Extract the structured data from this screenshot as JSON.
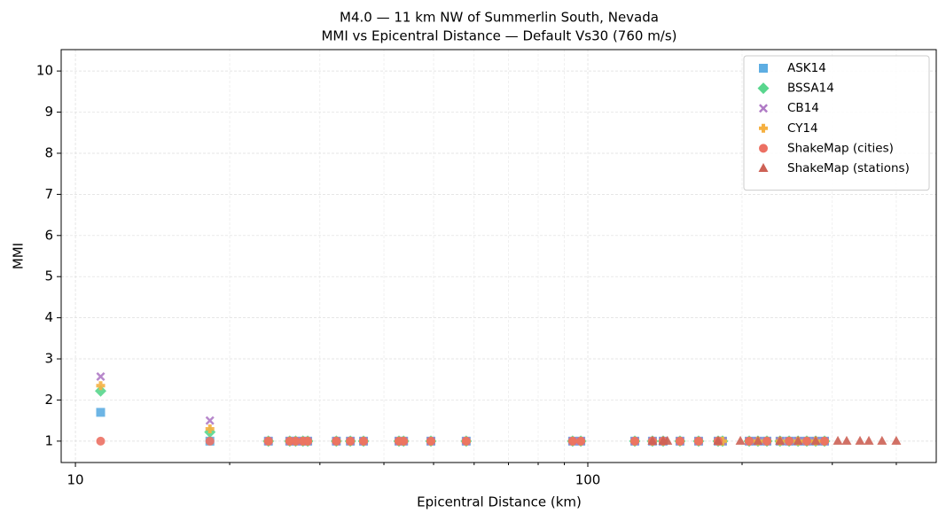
{
  "chart_data": {
    "type": "scatter",
    "title": "M4.0 — 11 km NW of Summerlin South, Nevada",
    "subtitle": "MMI vs Epicentral Distance — Default Vs30 (760 m/s)",
    "x_label": "Epicentral Distance (km)",
    "y_label": "MMI",
    "x_scale": "log",
    "grid": true,
    "legend": "upper right",
    "xlim": [
      9.38,
      478.6
    ],
    "xticks": [
      10,
      100
    ],
    "xminorticks": [
      20,
      30,
      40,
      50,
      60,
      70,
      80,
      90,
      200,
      300,
      400
    ],
    "ylim": [
      0.48,
      10.52
    ],
    "yticks": [
      1,
      2,
      3,
      4,
      5,
      6,
      7,
      8,
      9,
      10
    ],
    "series": [
      {
        "name": "ASK14",
        "color": "#5dade2",
        "marker": "square",
        "x": [
          11.2,
          18.3,
          23.8,
          26.2,
          26.9,
          27.8,
          28.4,
          32.3,
          34.4,
          36.5,
          42.8,
          43.7,
          49.4,
          57.9,
          93.4,
          96.9,
          123.5,
          133.7,
          140.3,
          151.3,
          164.5,
          179.6,
          183.2,
          206.5,
          214.8,
          223.6,
          237.2,
          247.1,
          257.2,
          267.5,
          278.4,
          289.7
        ],
        "values": [
          1.7,
          1.0,
          1,
          1,
          1,
          1,
          1,
          1,
          1,
          1,
          1,
          1,
          1,
          1,
          1,
          1,
          1,
          1,
          1,
          1,
          1,
          1,
          1,
          1,
          1,
          1,
          1,
          1,
          1,
          1,
          1,
          1
        ]
      },
      {
        "name": "BSSA14",
        "color": "#58d68d",
        "marker": "diamond",
        "x": [
          11.2,
          18.3,
          23.8,
          26.2,
          26.9,
          27.8,
          28.4,
          32.3,
          34.4,
          36.5,
          42.8,
          43.7,
          49.4,
          57.9,
          93.4,
          96.9,
          123.5,
          133.7,
          140.3,
          151.3,
          164.5,
          179.6,
          183.2,
          206.5,
          214.8,
          223.6,
          237.2,
          247.1,
          257.2,
          267.5,
          278.4,
          289.7
        ],
        "values": [
          2.22,
          1.22,
          1,
          1,
          1,
          1,
          1,
          1,
          1,
          1,
          1,
          1,
          1,
          1,
          1,
          1,
          1,
          1,
          1,
          1,
          1,
          1,
          1,
          1,
          1,
          1,
          1,
          1,
          1,
          1,
          1,
          1
        ]
      },
      {
        "name": "CB14",
        "color": "#af7ac5",
        "marker": "x",
        "x": [
          11.2,
          18.3,
          23.8,
          26.2,
          26.9,
          27.8,
          28.4,
          32.3,
          34.4,
          36.5,
          42.8,
          43.7,
          49.4,
          57.9,
          93.4,
          96.9,
          123.5,
          133.7,
          140.3,
          151.3,
          164.5,
          179.6,
          183.2,
          206.5,
          214.8,
          223.6,
          237.2,
          247.1,
          257.2,
          267.5,
          278.4,
          289.7
        ],
        "values": [
          2.57,
          1.5,
          1,
          1,
          1,
          1,
          1,
          1,
          1,
          1,
          1,
          1,
          1,
          1,
          1,
          1,
          1,
          1,
          1,
          1,
          1,
          1,
          1,
          1,
          1,
          1,
          1,
          1,
          1,
          1,
          1,
          1
        ]
      },
      {
        "name": "CY14",
        "color": "#f5b041",
        "marker": "plus",
        "x": [
          11.2,
          18.3,
          23.8,
          26.2,
          26.9,
          27.8,
          28.4,
          32.3,
          34.4,
          36.5,
          42.8,
          43.7,
          49.4,
          57.9,
          93.4,
          96.9,
          123.5,
          133.7,
          140.3,
          151.3,
          164.5,
          179.6,
          183.2,
          206.5,
          214.8,
          223.6,
          237.2,
          247.1,
          257.2,
          267.5,
          278.4,
          289.7
        ],
        "values": [
          2.35,
          1.3,
          1,
          1,
          1,
          1,
          1,
          1,
          1,
          1,
          1,
          1,
          1,
          1,
          1,
          1,
          1,
          1,
          1,
          1,
          1,
          1,
          1,
          1,
          1,
          1,
          1,
          1,
          1,
          1,
          1,
          1
        ]
      },
      {
        "name": "ShakeMap (cities)",
        "color": "#ec7063",
        "marker": "circle",
        "x": [
          11.2,
          18.3,
          23.8,
          26.2,
          26.9,
          27.8,
          28.4,
          32.3,
          34.4,
          36.5,
          42.8,
          43.7,
          49.4,
          57.9,
          93.4,
          96.9,
          123.5,
          133.7,
          140.3,
          151.3,
          164.5,
          179.6,
          206.5,
          223.6,
          247.1,
          267.5,
          289.7
        ],
        "values": [
          1,
          1,
          1,
          1,
          1,
          1,
          1,
          1,
          1,
          1,
          1,
          1,
          1,
          1,
          1,
          1,
          1,
          1,
          1,
          1,
          1,
          1,
          1,
          1,
          1,
          1,
          1
        ]
      },
      {
        "name": "ShakeMap (stations)",
        "color": "#cd6155",
        "marker": "triangle",
        "x": [
          133.7,
          140.3,
          143.0,
          179.6,
          198.5,
          214.8,
          237.2,
          257.2,
          278.4,
          307.6,
          320.0,
          339.8,
          353.6,
          375.1,
          399.9
        ],
        "values": [
          1,
          1,
          1,
          1,
          1,
          1,
          1,
          1,
          1,
          1,
          1,
          1,
          1,
          1,
          1
        ]
      }
    ]
  }
}
